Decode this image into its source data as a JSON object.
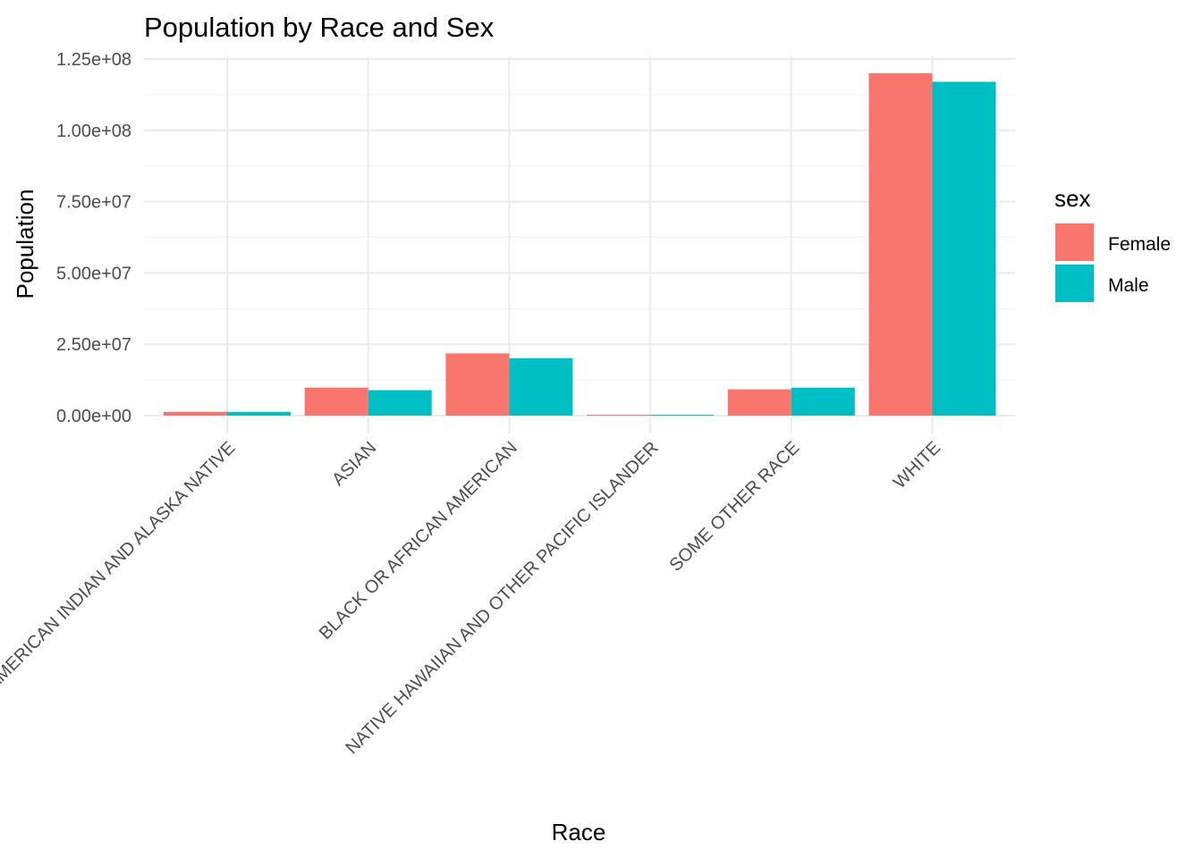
{
  "chart_data": {
    "type": "bar",
    "title": "Population by Race and Sex",
    "xlabel": "Race",
    "ylabel": "Population",
    "categories": [
      "AMERICAN INDIAN AND ALASKA NATIVE",
      "ASIAN",
      "BLACK OR AFRICAN AMERICAN",
      "NATIVE HAWAIIAN AND OTHER PACIFIC ISLANDER",
      "SOME OTHER RACE",
      "WHITE"
    ],
    "series": [
      {
        "name": "Female",
        "color": "#F8766D",
        "values": [
          1300000,
          9800000,
          21800000,
          300000,
          9200000,
          120000000
        ]
      },
      {
        "name": "Male",
        "color": "#00BFC4",
        "values": [
          1300000,
          8900000,
          20100000,
          300000,
          9800000,
          117000000
        ]
      }
    ],
    "ylim": [
      0,
      125000000
    ],
    "yticks": [
      0,
      25000000,
      50000000,
      75000000,
      100000000,
      125000000
    ],
    "ytick_labels": [
      "0.00e+00",
      "2.50e+07",
      "5.00e+07",
      "7.50e+07",
      "1.00e+08",
      "1.25e+08"
    ],
    "legend": {
      "title": "sex",
      "placement": "right"
    },
    "grid": true
  }
}
